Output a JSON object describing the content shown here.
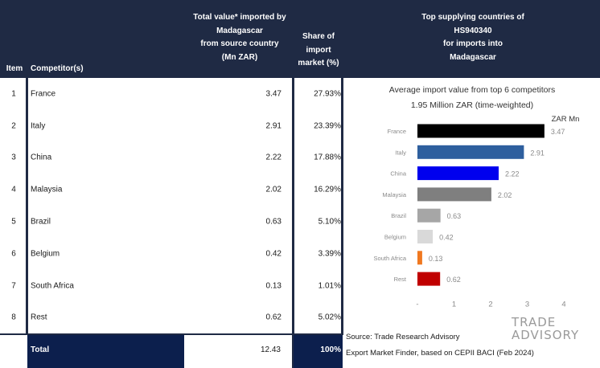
{
  "table": {
    "headers": {
      "item": "Item",
      "competitor": "Competitor(s)",
      "value_lines": [
        "Total value* imported by",
        "Madagascar",
        "from source country",
        "(Mn ZAR)"
      ],
      "share_lines": [
        "Share of",
        "import",
        "market (%)"
      ],
      "chart_lines": [
        "Top supplying countries of",
        "HS940340",
        "for imports into",
        "Madagascar"
      ]
    },
    "rows": [
      {
        "item": "1",
        "name": "France",
        "value": "3.47",
        "share": "27.93%"
      },
      {
        "item": "2",
        "name": "Italy",
        "value": "2.91",
        "share": "23.39%"
      },
      {
        "item": "3",
        "name": "China",
        "value": "2.22",
        "share": "17.88%"
      },
      {
        "item": "4",
        "name": "Malaysia",
        "value": "2.02",
        "share": "16.29%"
      },
      {
        "item": "5",
        "name": "Brazil",
        "value": "0.63",
        "share": "5.10%"
      },
      {
        "item": "6",
        "name": "Belgium",
        "value": "0.42",
        "share": "3.39%"
      },
      {
        "item": "7",
        "name": "South Africa",
        "value": "0.13",
        "share": "1.01%"
      },
      {
        "item": "8",
        "name": "Rest",
        "value": "0.62",
        "share": "5.02%"
      }
    ],
    "total": {
      "label": "Total",
      "value": "12.43",
      "share": "100%"
    }
  },
  "chart_data": {
    "type": "bar",
    "orientation": "horizontal",
    "title": "Average import value from top 6 competitors",
    "subtitle": "1.95 Million ZAR (time-weighted)",
    "unit_label": "ZAR Mn",
    "categories": [
      "France",
      "Italy",
      "China",
      "Malaysia",
      "Brazil",
      "Belgium",
      "South Africa",
      "Rest"
    ],
    "values": [
      3.47,
      2.91,
      2.22,
      2.02,
      0.63,
      0.42,
      0.13,
      0.62
    ],
    "value_labels": [
      "3.47",
      "2.91",
      "2.22",
      "2.02",
      "0.63",
      "0.42",
      "0.13",
      "0.62"
    ],
    "colors": [
      "#000000",
      "#2e5f9e",
      "#0000ee",
      "#7f7f7f",
      "#a6a6a6",
      "#d9d9d9",
      "#f07820",
      "#c00000"
    ],
    "xlim": [
      0,
      4
    ],
    "xticks": [
      "-",
      "1",
      "2",
      "3",
      "4"
    ],
    "grid": false
  },
  "source": {
    "line1": "Source: Trade Research Advisory",
    "line2": "Export Market Finder, based on CEPII BACI (Feb 2024)"
  },
  "logo": {
    "line1": "TRADE",
    "line2": "ADVISORY"
  }
}
